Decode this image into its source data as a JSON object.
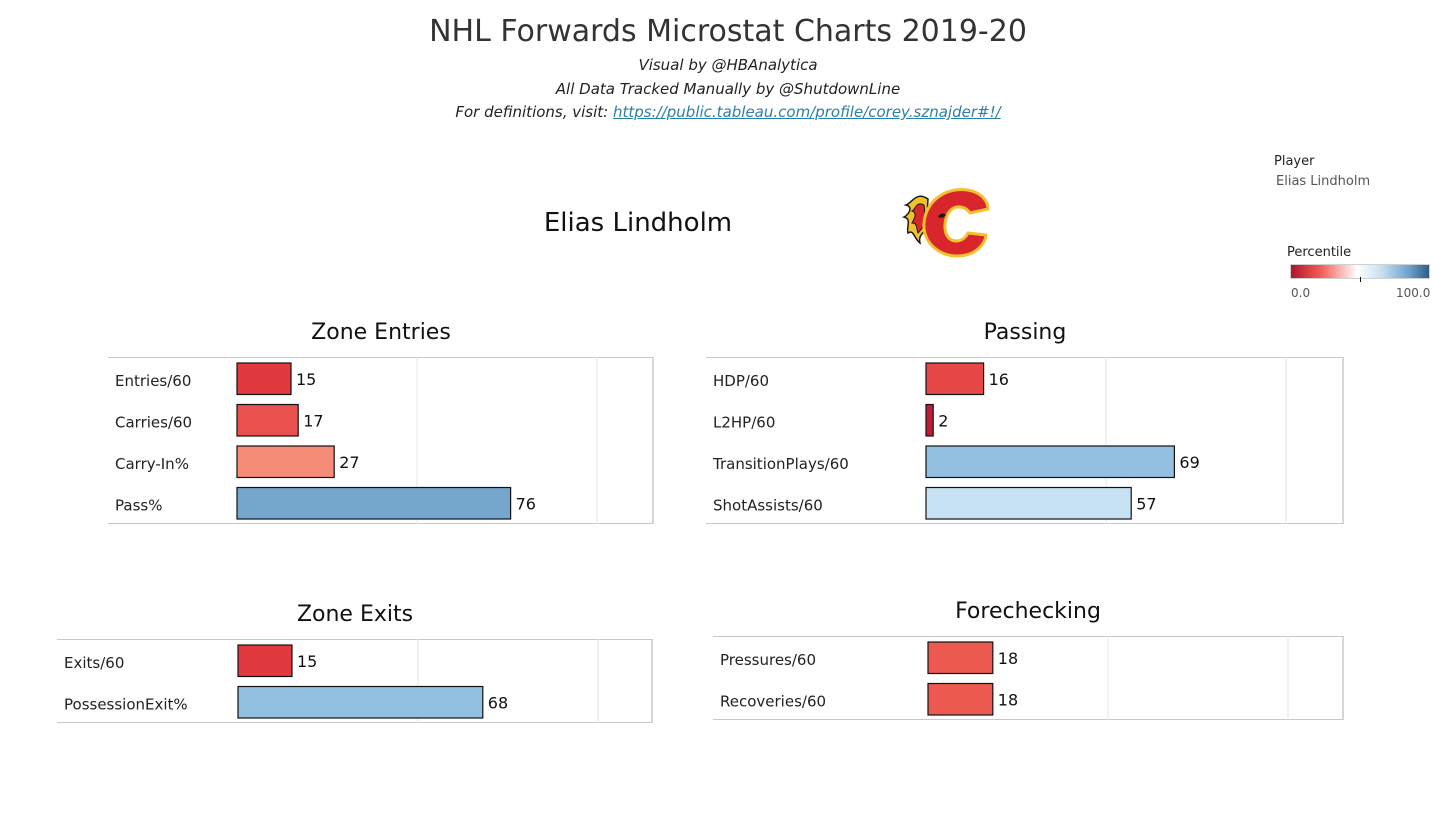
{
  "header": {
    "title": "NHL Forwards Microstat Charts 2019-20",
    "visual_by": "Visual by @HBAnalytica",
    "tracked_by": "All Data Tracked Manually by @ShutdownLine",
    "definitions_prefix": "For definitions, visit:",
    "definitions_link": "https://public.tableau.com/profile/corey.sznajder#!/"
  },
  "player": {
    "name": "Elias Lindholm",
    "team_logo_icon": "calgary-flames-logo"
  },
  "filter": {
    "label": "Player",
    "value": "Elias Lindholm"
  },
  "legend": {
    "title": "Percentile",
    "min_label": "0.0",
    "max_label": "100.0",
    "colors": [
      "#b4122b",
      "#f06157",
      "#ffffff",
      "#c5dff0",
      "#6d9fc9",
      "#2f5b8d"
    ]
  },
  "chart_data": [
    {
      "type": "bar",
      "orientation": "horizontal",
      "title": "Zone Entries",
      "categories": [
        "Entries/60",
        "Carries/60",
        "Carry-In%",
        "Pass%"
      ],
      "values": [
        15,
        17,
        27,
        76
      ],
      "colors": [
        "#e0393e",
        "#e9514f",
        "#f58c78",
        "#75a6cc"
      ],
      "xlim": [
        0,
        115
      ],
      "gridlines": [
        50,
        100
      ]
    },
    {
      "type": "bar",
      "orientation": "horizontal",
      "title": "Passing",
      "categories": [
        "HDP/60",
        "L2HP/60",
        "TransitionPlays/60",
        "ShotAssists/60"
      ],
      "values": [
        16,
        2,
        69,
        57
      ],
      "colors": [
        "#e54846",
        "#c01c35",
        "#93bfe0",
        "#c7e2f3"
      ],
      "xlim": [
        0,
        115
      ],
      "gridlines": [
        50,
        100
      ]
    },
    {
      "type": "bar",
      "orientation": "horizontal",
      "title": "Zone Exits",
      "categories": [
        "Exits/60",
        "PossessionExit%"
      ],
      "values": [
        15,
        68
      ],
      "colors": [
        "#e0393e",
        "#93bfe0"
      ],
      "xlim": [
        0,
        115
      ],
      "gridlines": [
        50,
        100
      ]
    },
    {
      "type": "bar",
      "orientation": "horizontal",
      "title": "Forechecking",
      "categories": [
        "Pressures/60",
        "Recoveries/60"
      ],
      "values": [
        18,
        18
      ],
      "colors": [
        "#ec5a4f",
        "#ec5a4f"
      ],
      "xlim": [
        0,
        115
      ],
      "gridlines": [
        50,
        100
      ]
    }
  ]
}
